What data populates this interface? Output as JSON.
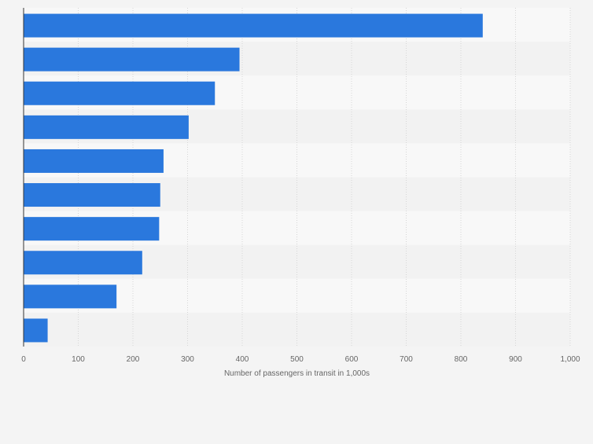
{
  "chart_data": {
    "type": "bar",
    "orientation": "horizontal",
    "title": "",
    "xlabel": "Number of passengers in transit in 1,000s",
    "ylabel": "",
    "xlim": [
      0,
      1000
    ],
    "ticks": [
      0,
      100,
      200,
      300,
      400,
      500,
      600,
      700,
      800,
      900,
      1000
    ],
    "tick_labels": [
      "0",
      "100",
      "200",
      "300",
      "400",
      "500",
      "600",
      "700",
      "800",
      "900",
      "1,000"
    ],
    "values": [
      840,
      395,
      350,
      302,
      256,
      250,
      248,
      217,
      170,
      44
    ],
    "grid": true,
    "colors": {
      "bar": "#2a78dd",
      "band_light": "#f8f8f8",
      "band_dark": "#f2f2f2",
      "grid": "#d6d6d6",
      "axis": "#333333",
      "text": "#666666"
    }
  }
}
